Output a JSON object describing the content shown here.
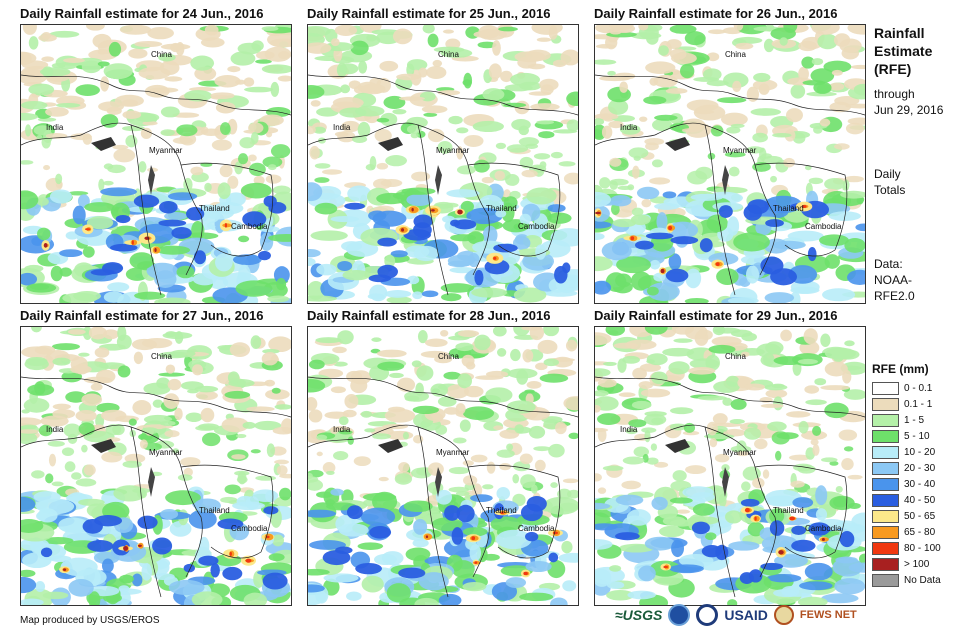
{
  "panels": [
    {
      "title": "Daily Rainfall estimate for 24 Jun., 2016"
    },
    {
      "title": "Daily Rainfall estimate for 25 Jun., 2016"
    },
    {
      "title": "Daily Rainfall estimate for 26 Jun., 2016"
    },
    {
      "title": "Daily Rainfall estimate for 27 Jun., 2016"
    },
    {
      "title": "Daily Rainfall estimate for 28 Jun., 2016"
    },
    {
      "title": "Daily Rainfall estimate for 29 Jun., 2016"
    }
  ],
  "map_labels": {
    "china": "China",
    "india": "India",
    "myanmar": "Myanmar",
    "thailand": "Thailand",
    "cambodia": "Cambodia"
  },
  "side": {
    "title_line1": "Rainfall",
    "title_line2": "Estimate",
    "title_line3": "(RFE)",
    "through": "through",
    "date": "Jun 29, 2016",
    "daily1": "Daily",
    "daily2": "Totals",
    "data1": "Data:",
    "data2": "NOAA-",
    "data3": "RFE2.0"
  },
  "legend": {
    "title": "RFE (mm)",
    "items": [
      {
        "label": "0 - 0.1",
        "color": "#ffffff"
      },
      {
        "label": "0.1 - 1",
        "color": "#ecdcbc"
      },
      {
        "label": "1 - 5",
        "color": "#b4f0a8"
      },
      {
        "label": "5 - 10",
        "color": "#6ee06a"
      },
      {
        "label": "10 - 20",
        "color": "#b8ecf8"
      },
      {
        "label": "20 - 30",
        "color": "#8cc8f4"
      },
      {
        "label": "30 - 40",
        "color": "#4a94ec"
      },
      {
        "label": "40 - 50",
        "color": "#2a5ee0"
      },
      {
        "label": "50 - 65",
        "color": "#fce88a"
      },
      {
        "label": "65 - 80",
        "color": "#f89a20"
      },
      {
        "label": "80 - 100",
        "color": "#f03810"
      },
      {
        "label": "> 100",
        "color": "#a82020"
      },
      {
        "label": "No Data",
        "color": "#9a9a9a"
      }
    ]
  },
  "credit": "Map produced by USGS/EROS",
  "logos": {
    "usgs": "≈USGS",
    "usaid": "USAID",
    "fews": "FEWS NET"
  }
}
